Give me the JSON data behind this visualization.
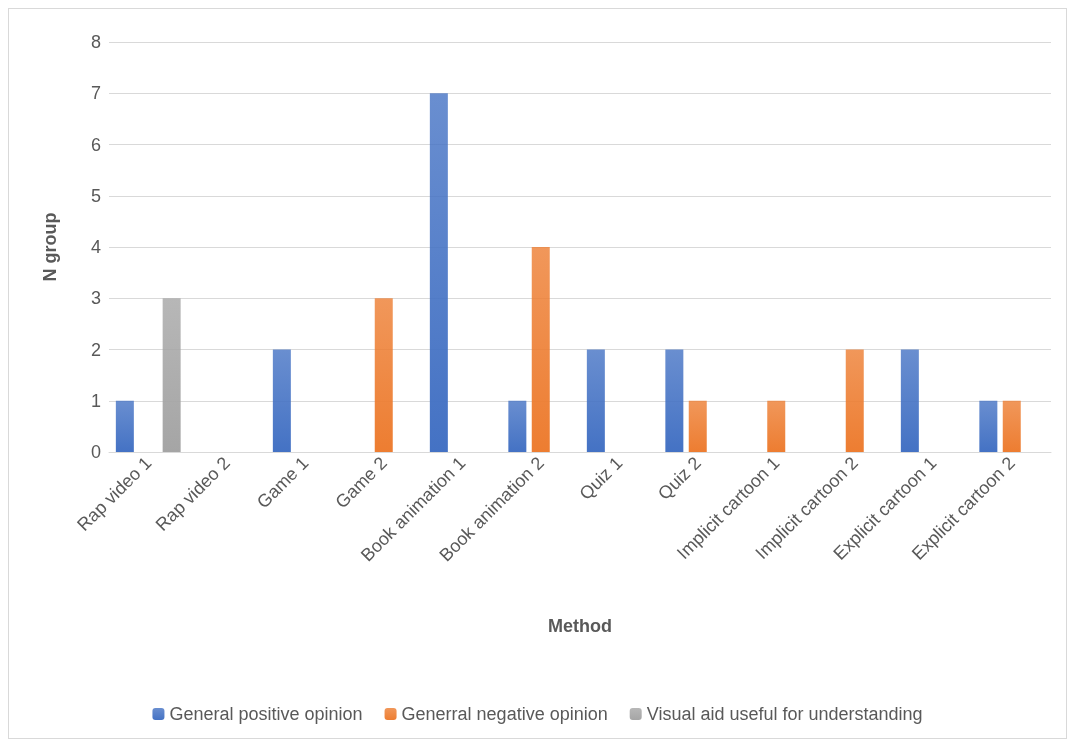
{
  "chart_data": {
    "type": "bar",
    "xlabel": "Method",
    "ylabel": "N group",
    "categories": [
      "Rap video 1",
      "Rap video 2",
      "Game 1",
      "Game 2",
      "Book animation 1",
      "Book animation 2",
      "Quiz 1",
      "Quiz 2",
      "Implicit cartoon 1",
      "Implicit cartoon 2",
      "Explicit cartoon 1",
      "Explicit cartoon 2"
    ],
    "series": [
      {
        "name": "General positive opinion",
        "color": "#4472c4",
        "values": [
          1,
          0,
          2,
          0,
          7,
          1,
          2,
          2,
          0,
          0,
          2,
          1
        ]
      },
      {
        "name": "Generral negative opinion",
        "color": "#ed7d31",
        "values": [
          0,
          0,
          0,
          3,
          0,
          4,
          0,
          1,
          1,
          2,
          0,
          1
        ]
      },
      {
        "name": "Visual aid useful for understanding",
        "color": "#a5a5a5",
        "values": [
          3,
          0,
          0,
          0,
          0,
          0,
          0,
          0,
          0,
          0,
          0,
          0
        ]
      }
    ],
    "ylim": [
      0,
      8
    ],
    "yticks": [
      0,
      1,
      2,
      3,
      4,
      5,
      6,
      7,
      8
    ],
    "grid": "y",
    "legend": "bottom"
  }
}
